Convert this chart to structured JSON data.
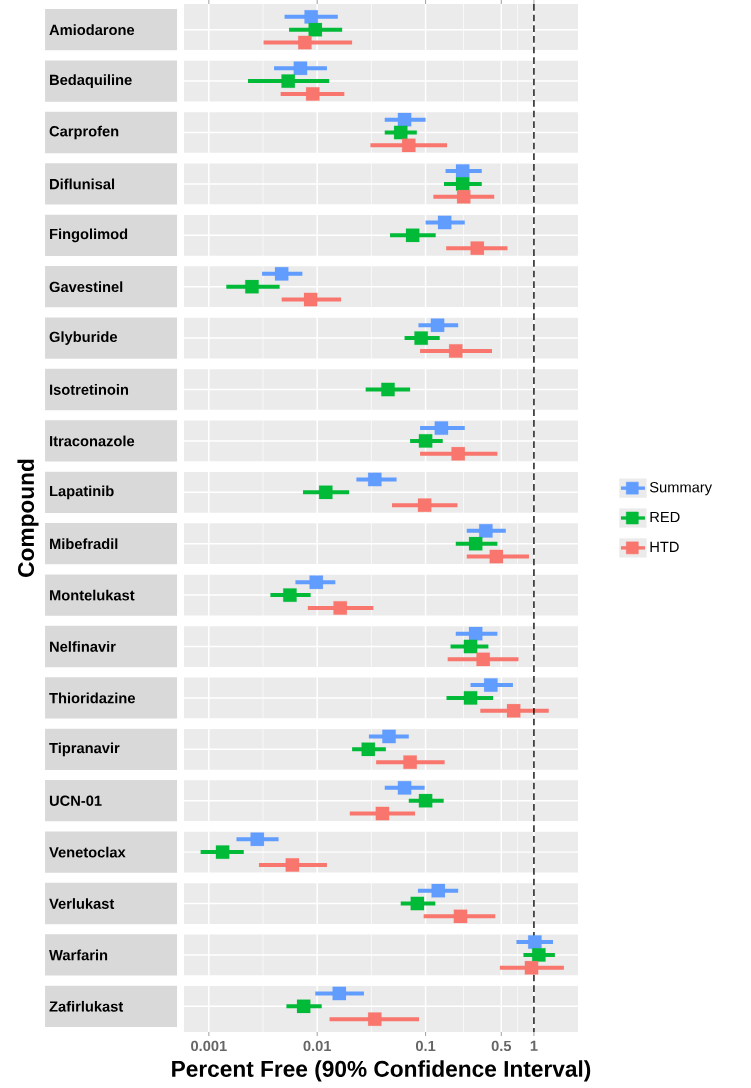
{
  "chart_data": {
    "type": "scatter",
    "orientation": "horizontal",
    "xlabel": "Percent Free (90% Confidence Interval)",
    "ylabel": "Compound",
    "categories": [
      "Amiodarone",
      "Bedaquiline",
      "Carprofen",
      "Diflunisal",
      "Fingolimod",
      "Gavestinel",
      "Glyburide",
      "Isotretinoin",
      "Itraconazole",
      "Lapatinib",
      "Mibefradil",
      "Montelukast",
      "Nelfinavir",
      "Thioridazine",
      "Tipranavir",
      "UCN-01",
      "Venetoclax",
      "Verlukast",
      "Warfarin",
      "Zafirlukast"
    ],
    "series": [
      {
        "name": "Summary",
        "color": "#619cff",
        "values": [
          0.0088,
          0.007,
          0.064,
          0.22,
          0.15,
          0.0047,
          0.129,
          null,
          0.14,
          0.034,
          0.36,
          0.0098,
          0.29,
          0.4,
          0.046,
          0.064,
          0.0028,
          0.131,
          1.02,
          0.016
        ],
        "errors": [
          [
            0.005,
            0.0155
          ],
          [
            0.004,
            0.0123
          ],
          [
            0.042,
            0.1
          ],
          [
            0.153,
            0.33
          ],
          [
            0.1,
            0.23
          ],
          [
            0.0031,
            0.0073
          ],
          [
            0.086,
            0.2
          ],
          null,
          [
            0.089,
            0.23
          ],
          [
            0.023,
            0.054
          ],
          [
            0.24,
            0.55
          ],
          [
            0.0063,
            0.0147
          ],
          [
            0.19,
            0.46
          ],
          [
            0.26,
            0.64
          ],
          [
            0.03,
            0.07
          ],
          [
            0.042,
            0.098
          ],
          [
            0.0018,
            0.0044
          ],
          [
            0.085,
            0.2
          ],
          [
            0.69,
            1.5
          ],
          [
            0.0096,
            0.027
          ]
        ]
      },
      {
        "name": "RED",
        "color": "#00ba38",
        "values": [
          0.0096,
          0.0054,
          0.059,
          0.22,
          0.076,
          0.0025,
          0.091,
          0.045,
          0.1,
          0.012,
          0.29,
          0.0056,
          0.26,
          0.26,
          0.0296,
          0.1,
          0.00134,
          0.084,
          1.11,
          0.0075
        ],
        "errors": [
          [
            0.0055,
            0.017
          ],
          [
            0.0023,
            0.0129
          ],
          [
            0.042,
            0.083
          ],
          [
            0.148,
            0.33
          ],
          [
            0.047,
            0.124
          ],
          [
            0.00145,
            0.0045
          ],
          [
            0.064,
            0.135
          ],
          [
            0.028,
            0.072
          ],
          [
            0.072,
            0.144
          ],
          [
            0.0074,
            0.0197
          ],
          [
            0.19,
            0.46
          ],
          [
            0.0037,
            0.0087
          ],
          [
            0.17,
            0.38
          ],
          [
            0.156,
            0.42
          ],
          [
            0.021,
            0.043
          ],
          [
            0.07,
            0.147
          ],
          [
            0.00084,
            0.0021
          ],
          [
            0.059,
            0.123
          ],
          [
            0.8,
            1.56
          ],
          [
            0.0052,
            0.011
          ]
        ]
      },
      {
        "name": "HTD",
        "color": "#f8766d",
        "values": [
          0.0077,
          0.0091,
          0.07,
          0.225,
          0.3,
          0.0087,
          0.19,
          null,
          0.2,
          0.098,
          0.45,
          0.0163,
          0.34,
          0.65,
          0.072,
          0.04,
          0.0059,
          0.21,
          0.95,
          0.034
        ],
        "errors": [
          [
            0.0032,
            0.021
          ],
          [
            0.0046,
            0.0178
          ],
          [
            0.031,
            0.158
          ],
          [
            0.118,
            0.43
          ],
          [
            0.155,
            0.57
          ],
          [
            0.0047,
            0.0166
          ],
          [
            0.089,
            0.41
          ],
          null,
          [
            0.089,
            0.46
          ],
          [
            0.049,
            0.197
          ],
          [
            0.24,
            0.9
          ],
          [
            0.0082,
            0.033
          ],
          [
            0.16,
            0.72
          ],
          [
            0.32,
            1.37
          ],
          [
            0.035,
            0.15
          ],
          [
            0.02,
            0.08
          ],
          [
            0.0029,
            0.0123
          ],
          [
            0.096,
            0.44
          ],
          [
            0.485,
            1.89
          ],
          [
            0.013,
            0.087
          ]
        ]
      }
    ],
    "xlim": [
      0.00059,
      2.55
    ],
    "xticks": [
      0.001,
      0.01,
      0.1,
      0.5,
      1
    ],
    "log": "x",
    "grid": true,
    "legend": "right",
    "marker": "square",
    "ref_lines": [
      {
        "axis": "x",
        "value": 1,
        "color": "#000000",
        "line_style": "dashed"
      }
    ]
  }
}
